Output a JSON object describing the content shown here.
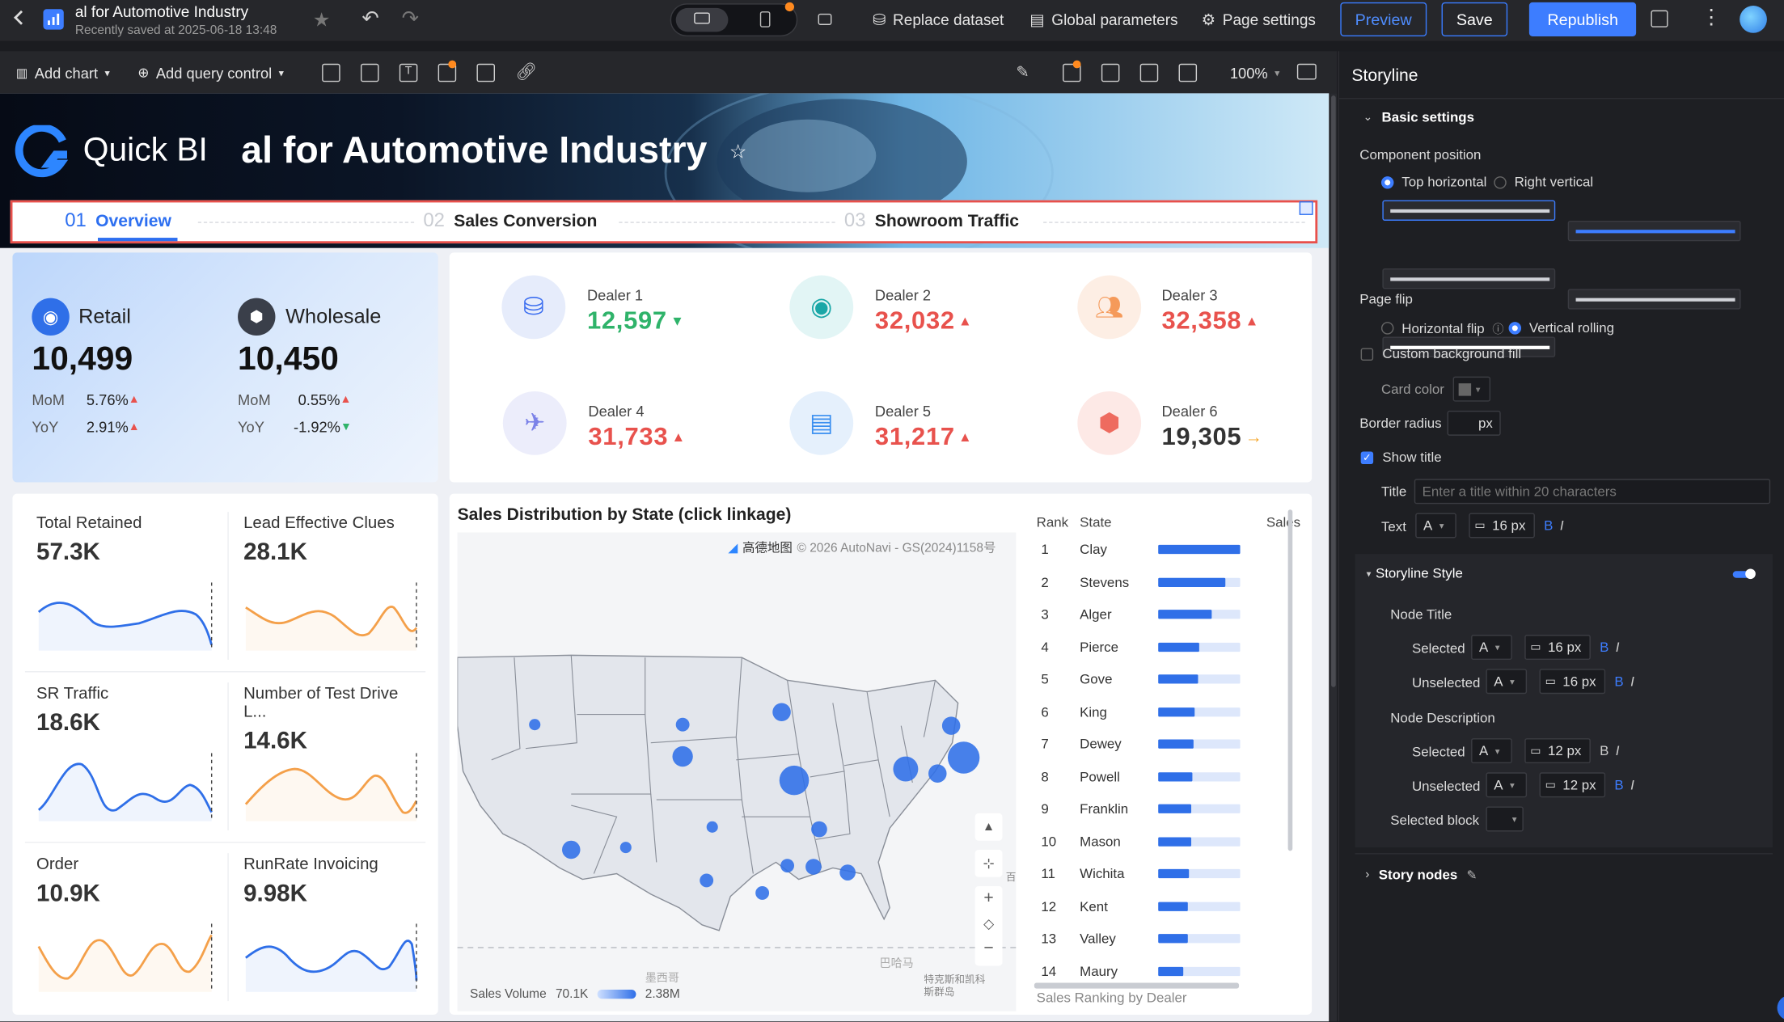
{
  "app": {
    "title": "al for Automotive Industry",
    "saved": "Recently saved at 2025-06-18 13:48"
  },
  "topbar": {
    "replace_dataset": "Replace dataset",
    "global_params": "Global parameters",
    "page_settings": "Page settings",
    "preview": "Preview",
    "save": "Save",
    "republish": "Republish"
  },
  "toolbar": {
    "add_chart": "Add chart",
    "add_query": "Add query control",
    "zoom": "100%"
  },
  "banner": {
    "logo_text": "Quick BI",
    "title": "al for Automotive Industry"
  },
  "tabs": [
    {
      "num": "01",
      "label": "Overview",
      "active": true
    },
    {
      "num": "02",
      "label": "Sales Conversion",
      "active": false
    },
    {
      "num": "03",
      "label": "Showroom Traffic",
      "active": false
    }
  ],
  "retail": {
    "label": "Retail",
    "value": "10,499",
    "mom_label": "MoM",
    "mom": "5.76%",
    "yoy_label": "YoY",
    "yoy": "2.91%"
  },
  "wholesale": {
    "label": "Wholesale",
    "value": "10,450",
    "mom_label": "MoM",
    "mom": "0.55%",
    "yoy_label": "YoY",
    "yoy": "-1.92%"
  },
  "dealers": [
    {
      "name": "Dealer 1",
      "value": "12,597",
      "trend": "down",
      "icon": "database-icon",
      "color": "#3d6ff0",
      "bg": "#e6ecfb"
    },
    {
      "name": "Dealer 2",
      "value": "32,032",
      "trend": "up",
      "icon": "eye-icon",
      "color": "#1aa7a7",
      "bg": "#e2f5f5"
    },
    {
      "name": "Dealer 3",
      "value": "32,358",
      "trend": "up",
      "icon": "users-icon",
      "color": "#f59a5a",
      "bg": "#fdeee4"
    },
    {
      "name": "Dealer 4",
      "value": "31,733",
      "trend": "up",
      "icon": "plane-icon",
      "color": "#7b82e8",
      "bg": "#ecedfb"
    },
    {
      "name": "Dealer 5",
      "value": "31,217",
      "trend": "up",
      "icon": "clipboard-icon",
      "color": "#3a8ff0",
      "bg": "#e5f0fc"
    },
    {
      "name": "Dealer 6",
      "value": "19,305",
      "trend": "flat",
      "icon": "hexagon-icon",
      "color": "#ee6b5f",
      "bg": "#fde9e6"
    }
  ],
  "metrics": [
    {
      "label": "Total Retained",
      "value": "57.3K",
      "color": "#2f6fe8"
    },
    {
      "label": "Lead Effective Clues",
      "value": "28.1K",
      "color": "#f4a04a"
    },
    {
      "label": "SR Traffic",
      "value": "18.6K",
      "color": "#2f6fe8"
    },
    {
      "label": "Number of Test Drive L...",
      "value": "14.6K",
      "color": "#f4a04a"
    },
    {
      "label": "Order",
      "value": "10.9K",
      "color": "#f4a04a"
    },
    {
      "label": "RunRate Invoicing",
      "value": "9.98K",
      "color": "#2f6fe8"
    }
  ],
  "map": {
    "title": "Sales Distribution by State (click linkage)",
    "attribution": "© 2026 AutoNavi - GS(2024)1158号",
    "provider": "高德地图",
    "legend_label": "Sales Volume",
    "legend_min": "70.1K",
    "legend_max": "2.38M",
    "label_mexico": "墨西哥",
    "label_panama": "巴哈马",
    "label_islands": "特克斯和凯科斯群岛",
    "label_hundred": "百"
  },
  "ranking": {
    "col_rank": "Rank",
    "col_state": "State",
    "col_sales": "Sales",
    "footer": "Sales Ranking by Dealer",
    "rows": [
      {
        "rank": "1",
        "state": "Clay",
        "pct": 1.0
      },
      {
        "rank": "2",
        "state": "Stevens",
        "pct": 0.82
      },
      {
        "rank": "3",
        "state": "Alger",
        "pct": 0.65
      },
      {
        "rank": "4",
        "state": "Pierce",
        "pct": 0.5
      },
      {
        "rank": "5",
        "state": "Gove",
        "pct": 0.48
      },
      {
        "rank": "6",
        "state": "King",
        "pct": 0.44
      },
      {
        "rank": "7",
        "state": "Dewey",
        "pct": 0.43
      },
      {
        "rank": "8",
        "state": "Powell",
        "pct": 0.41
      },
      {
        "rank": "9",
        "state": "Franklin",
        "pct": 0.4
      },
      {
        "rank": "10",
        "state": "Mason",
        "pct": 0.4
      },
      {
        "rank": "11",
        "state": "Wichita",
        "pct": 0.38
      },
      {
        "rank": "12",
        "state": "Kent",
        "pct": 0.36
      },
      {
        "rank": "13",
        "state": "Valley",
        "pct": 0.36
      },
      {
        "rank": "14",
        "state": "Maury",
        "pct": 0.3
      }
    ]
  },
  "panel": {
    "title": "Storyline",
    "basic_settings": "Basic settings",
    "component_position": "Component position",
    "top_horizontal": "Top horizontal",
    "right_vertical": "Right vertical",
    "page_flip": "Page flip",
    "horizontal_flip": "Horizontal flip",
    "vertical_rolling": "Vertical rolling",
    "custom_bg": "Custom background fill",
    "card_color": "Card color",
    "border_radius": "Border radius",
    "px": "px",
    "show_title": "Show title",
    "title_label": "Title",
    "title_placeholder": "Enter a title within 20 characters",
    "text_label": "Text",
    "font_a": "A",
    "size_16": "16 px",
    "size_12": "12 px",
    "bold": "B",
    "italic": "I",
    "storyline_style": "Storyline Style",
    "node_title": "Node Title",
    "selected": "Selected",
    "unselected": "Unselected",
    "node_description": "Node Description",
    "selected_block": "Selected block",
    "story_nodes": "Story nodes"
  }
}
